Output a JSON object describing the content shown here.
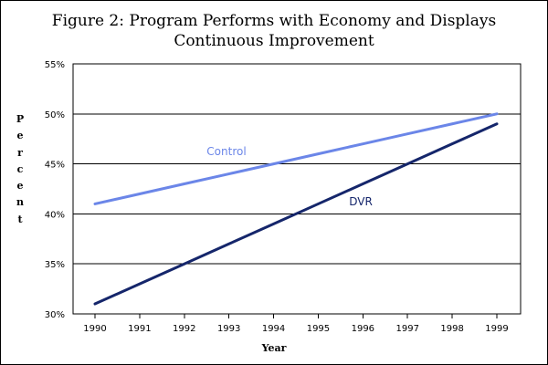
{
  "chart_data": {
    "type": "line",
    "title_lines": [
      "Figure 2:  Program Performs with Economy and Displays",
      "Continuous Improvement"
    ],
    "xlabel": "Year",
    "ylabel": "Percent",
    "x": [
      "1990",
      "1991",
      "1992",
      "1993",
      "1994",
      "1995",
      "1996",
      "1997",
      "1998",
      "1999"
    ],
    "ylim": [
      30,
      55
    ],
    "yticks": [
      30,
      35,
      40,
      45,
      50,
      55
    ],
    "ytick_labels": [
      "30%",
      "35%",
      "40%",
      "45%",
      "50%",
      "55%"
    ],
    "grid": true,
    "series": [
      {
        "name": "Control",
        "color": "#6b86e8",
        "values": [
          41,
          42,
          43,
          44,
          45,
          46,
          47,
          48,
          49,
          50
        ]
      },
      {
        "name": "DVR",
        "color": "#15266b",
        "values": [
          31,
          33,
          35,
          37,
          39,
          41,
          43,
          45,
          47,
          49
        ]
      }
    ]
  }
}
